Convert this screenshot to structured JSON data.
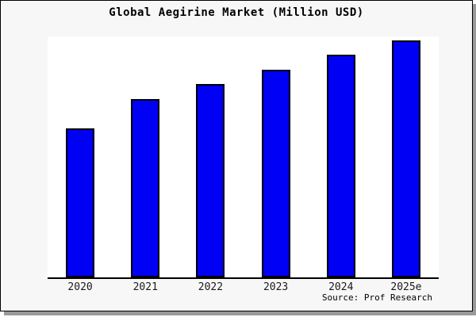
{
  "window": {
    "background": "#f7f7f7",
    "border_color": "#000000",
    "shadow_color": "#999999"
  },
  "header": {
    "title": "Global Aegirine Market (Million USD)"
  },
  "footer": {
    "source_label": "Source: Prof Research"
  },
  "chart_data": {
    "type": "bar",
    "title": "Global Aegirine Market (Million USD)",
    "categories": [
      "2020",
      "2021",
      "2022",
      "2023",
      "2024",
      "2025e"
    ],
    "values": [
      62.9,
      75.3,
      81.6,
      87.6,
      94.0,
      100.0
    ],
    "value_note": "no y-axis shown; values are bar heights as percent of tallest (2025e) bar, estimated from pixels",
    "ylim": [
      0,
      100
    ],
    "xlabel": "",
    "ylabel": "",
    "grid": false,
    "legend": false,
    "bar_color": "#0000f5",
    "bar_edge_color": "#000000",
    "axis_color": "#000000",
    "source": "Prof Research"
  }
}
